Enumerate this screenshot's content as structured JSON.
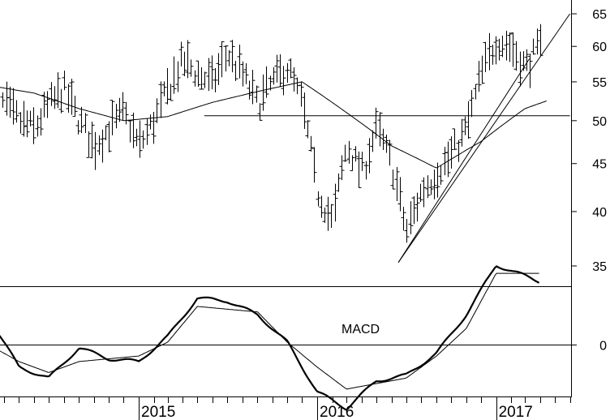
{
  "chart_data": [
    {
      "type": "ohlc",
      "title": "",
      "xlabel": "",
      "ylabel": "",
      "scale": "log",
      "ylim": [
        32,
        67
      ],
      "x_range": [
        "2014-03-01",
        "2017-06-01"
      ],
      "x_ticks": [
        "2015",
        "2016",
        "2017"
      ],
      "y_ticks": [
        35,
        40,
        45,
        50,
        55,
        60,
        65
      ],
      "price_path": [
        [
          "2014-03-01",
          53
        ],
        [
          "2014-04-01",
          52
        ],
        [
          "2014-05-01",
          50
        ],
        [
          "2014-06-01",
          49
        ],
        [
          "2014-07-01",
          52
        ],
        [
          "2014-08-01",
          54
        ],
        [
          "2014-09-01",
          50
        ],
        [
          "2014-10-01",
          47
        ],
        [
          "2014-11-01",
          49
        ],
        [
          "2014-12-01",
          51
        ],
        [
          "2015-01-01",
          47
        ],
        [
          "2015-02-01",
          50
        ],
        [
          "2015-03-01",
          54
        ],
        [
          "2015-04-01",
          58
        ],
        [
          "2015-05-01",
          56
        ],
        [
          "2015-06-01",
          55
        ],
        [
          "2015-07-01",
          59
        ],
        [
          "2015-08-01",
          56
        ],
        [
          "2015-09-01",
          52
        ],
        [
          "2015-10-01",
          55
        ],
        [
          "2015-11-01",
          57
        ],
        [
          "2015-12-01",
          52
        ],
        [
          "2016-01-01",
          42
        ],
        [
          "2016-02-01",
          39
        ],
        [
          "2016-03-01",
          47
        ],
        [
          "2016-04-01",
          44
        ],
        [
          "2016-05-01",
          49
        ],
        [
          "2016-06-01",
          45
        ],
        [
          "2016-07-01",
          38
        ],
        [
          "2016-08-01",
          42
        ],
        [
          "2016-09-01",
          44
        ],
        [
          "2016-10-01",
          46
        ],
        [
          "2016-11-01",
          49
        ],
        [
          "2016-12-01",
          56
        ],
        [
          "2017-01-01",
          61
        ],
        [
          "2017-02-01",
          60
        ],
        [
          "2017-03-01",
          57
        ],
        [
          "2017-04-01",
          60
        ]
      ],
      "moving_average": [
        [
          "2014-03-01",
          54.5
        ],
        [
          "2014-06-01",
          53.5
        ],
        [
          "2014-09-01",
          51.5
        ],
        [
          "2014-12-01",
          50
        ],
        [
          "2015-03-01",
          50.5
        ],
        [
          "2015-06-01",
          52.3
        ],
        [
          "2015-09-01",
          53.7
        ],
        [
          "2015-12-01",
          55
        ],
        [
          "2016-03-01",
          51
        ],
        [
          "2016-06-01",
          47
        ],
        [
          "2016-09-01",
          44.5
        ],
        [
          "2016-12-01",
          47.5
        ],
        [
          "2017-03-01",
          51.5
        ],
        [
          "2017-04-15",
          52.5
        ]
      ],
      "trendlines": [
        {
          "from": [
            "2015-05-15",
            50.6
          ],
          "to": [
            "2017-06-01",
            50.6
          ]
        },
        {
          "from": [
            "2016-06-15",
            35.3
          ],
          "to": [
            "2017-06-01",
            65
          ]
        },
        {
          "from": [
            "2016-06-15",
            35.3
          ],
          "to": [
            "2017-03-10",
            58.2
          ]
        }
      ]
    },
    {
      "type": "line",
      "title": "",
      "annotations": [
        "MACD"
      ],
      "xlabel": "",
      "ylabel": "",
      "y_ticks": [
        0
      ],
      "ylim": [
        -3.2,
        4
      ],
      "series": [
        {
          "values": [
            [
              "2014-03-01",
              1.0
            ],
            [
              "2014-05-01",
              -0.8
            ],
            [
              "2014-07-01",
              -1.2
            ],
            [
              "2014-09-01",
              -0.1
            ],
            [
              "2014-11-01",
              -0.5
            ],
            [
              "2015-01-01",
              -0.6
            ],
            [
              "2015-03-01",
              0.3
            ],
            [
              "2015-05-01",
              1.7
            ],
            [
              "2015-07-01",
              1.6
            ],
            [
              "2015-09-01",
              1.1
            ],
            [
              "2015-11-01",
              0.1
            ],
            [
              "2016-01-01",
              -1.7
            ],
            [
              "2016-03-01",
              -2.3
            ],
            [
              "2016-05-01",
              -1.3
            ],
            [
              "2016-07-01",
              -1.1
            ],
            [
              "2016-09-01",
              -0.3
            ],
            [
              "2016-11-01",
              1.1
            ],
            [
              "2017-01-01",
              2.9
            ],
            [
              "2017-04-01",
              2.3
            ]
          ]
        },
        {
          "values": [
            [
              "2014-03-01",
              0.0
            ],
            [
              "2014-05-01",
              -0.6
            ],
            [
              "2014-07-01",
              -1.0
            ],
            [
              "2014-09-01",
              -0.6
            ],
            [
              "2014-11-01",
              -0.5
            ],
            [
              "2015-01-01",
              -0.4
            ],
            [
              "2015-03-01",
              0.1
            ],
            [
              "2015-05-01",
              1.4
            ],
            [
              "2015-07-01",
              1.3
            ],
            [
              "2015-09-01",
              1.2
            ],
            [
              "2015-11-01",
              0.1
            ],
            [
              "2016-01-01",
              -0.8
            ],
            [
              "2016-03-01",
              -1.6
            ],
            [
              "2016-05-01",
              -1.4
            ],
            [
              "2016-07-01",
              -1.2
            ],
            [
              "2016-09-01",
              -0.4
            ],
            [
              "2016-11-01",
              0.6
            ],
            [
              "2017-01-01",
              2.6
            ],
            [
              "2017-04-01",
              2.6
            ]
          ]
        }
      ]
    }
  ]
}
